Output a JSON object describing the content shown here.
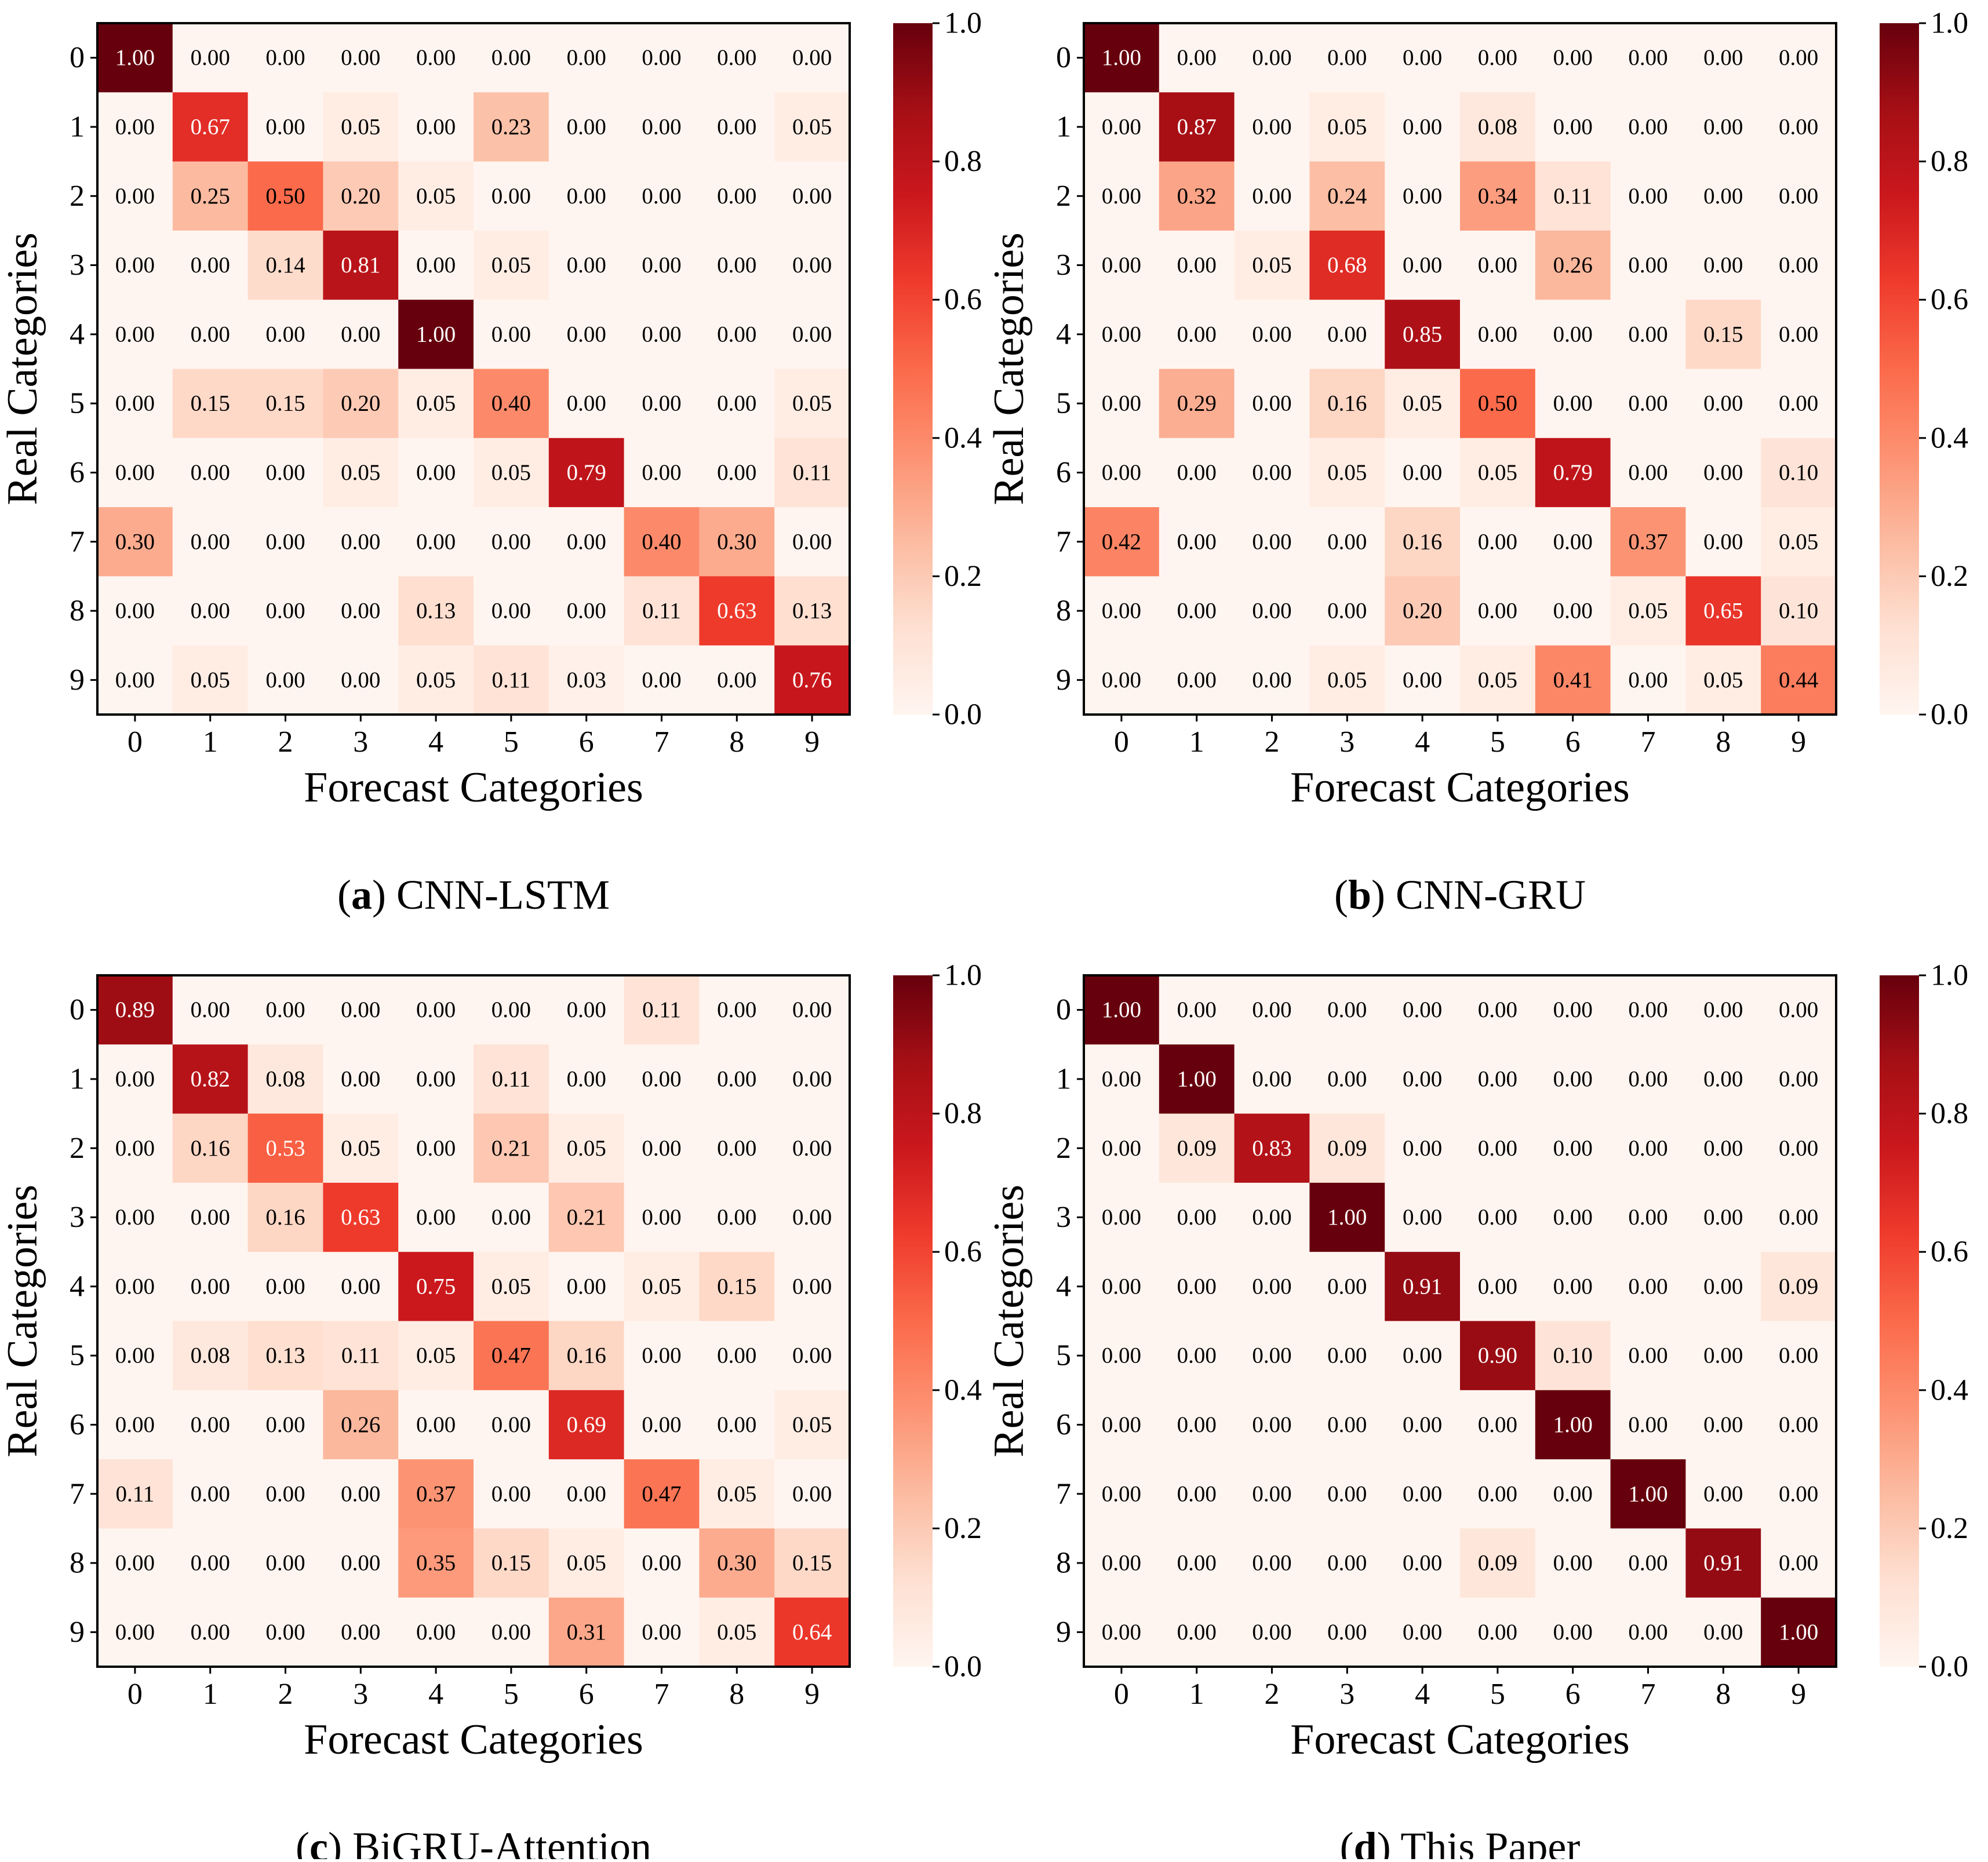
{
  "colormap": {
    "name": "Reds",
    "stops": [
      "#fff5f0",
      "#fee0d2",
      "#fcbba1",
      "#fc9272",
      "#fb6a4a",
      "#ef3b2c",
      "#cb181d",
      "#a50f15",
      "#67000d"
    ],
    "light_text_color": "#ffffff",
    "dark_text_color": "#000000"
  },
  "colorbar": {
    "ticks": [
      "0.0",
      "0.2",
      "0.4",
      "0.6",
      "0.8",
      "1.0"
    ]
  },
  "chart_data": [
    {
      "type": "heatmap",
      "caption_letter": "a",
      "caption_text": " CNN-LSTM",
      "xlabel": "Forecast Categories",
      "ylabel": "Real Categories",
      "x_ticks": [
        "0",
        "1",
        "2",
        "3",
        "4",
        "5",
        "6",
        "7",
        "8",
        "9"
      ],
      "y_ticks": [
        "0",
        "1",
        "2",
        "3",
        "4",
        "5",
        "6",
        "7",
        "8",
        "9"
      ],
      "vmin": 0.0,
      "vmax": 1.0,
      "matrix": [
        [
          1.0,
          0.0,
          0.0,
          0.0,
          0.0,
          0.0,
          0.0,
          0.0,
          0.0,
          0.0
        ],
        [
          0.0,
          0.67,
          0.0,
          0.05,
          0.0,
          0.23,
          0.0,
          0.0,
          0.0,
          0.05
        ],
        [
          0.0,
          0.25,
          0.5,
          0.2,
          0.05,
          0.0,
          0.0,
          0.0,
          0.0,
          0.0
        ],
        [
          0.0,
          0.0,
          0.14,
          0.81,
          0.0,
          0.05,
          0.0,
          0.0,
          0.0,
          0.0
        ],
        [
          0.0,
          0.0,
          0.0,
          0.0,
          1.0,
          0.0,
          0.0,
          0.0,
          0.0,
          0.0
        ],
        [
          0.0,
          0.15,
          0.15,
          0.2,
          0.05,
          0.4,
          0.0,
          0.0,
          0.0,
          0.05
        ],
        [
          0.0,
          0.0,
          0.0,
          0.05,
          0.0,
          0.05,
          0.79,
          0.0,
          0.0,
          0.11
        ],
        [
          0.3,
          0.0,
          0.0,
          0.0,
          0.0,
          0.0,
          0.0,
          0.4,
          0.3,
          0.0
        ],
        [
          0.0,
          0.0,
          0.0,
          0.0,
          0.13,
          0.0,
          0.0,
          0.11,
          0.63,
          0.13
        ],
        [
          0.0,
          0.05,
          0.0,
          0.0,
          0.05,
          0.11,
          0.03,
          0.0,
          0.0,
          0.76
        ]
      ]
    },
    {
      "type": "heatmap",
      "caption_letter": "b",
      "caption_text": " CNN-GRU",
      "xlabel": "Forecast Categories",
      "ylabel": "Real Categories",
      "x_ticks": [
        "0",
        "1",
        "2",
        "3",
        "4",
        "5",
        "6",
        "7",
        "8",
        "9"
      ],
      "y_ticks": [
        "0",
        "1",
        "2",
        "3",
        "4",
        "5",
        "6",
        "7",
        "8",
        "9"
      ],
      "vmin": 0.0,
      "vmax": 1.0,
      "matrix": [
        [
          1.0,
          0.0,
          0.0,
          0.0,
          0.0,
          0.0,
          0.0,
          0.0,
          0.0,
          0.0
        ],
        [
          0.0,
          0.87,
          0.0,
          0.05,
          0.0,
          0.08,
          0.0,
          0.0,
          0.0,
          0.0
        ],
        [
          0.0,
          0.32,
          0.0,
          0.24,
          0.0,
          0.34,
          0.11,
          0.0,
          0.0,
          0.0
        ],
        [
          0.0,
          0.0,
          0.05,
          0.68,
          0.0,
          0.0,
          0.26,
          0.0,
          0.0,
          0.0
        ],
        [
          0.0,
          0.0,
          0.0,
          0.0,
          0.85,
          0.0,
          0.0,
          0.0,
          0.15,
          0.0
        ],
        [
          0.0,
          0.29,
          0.0,
          0.16,
          0.05,
          0.5,
          0.0,
          0.0,
          0.0,
          0.0
        ],
        [
          0.0,
          0.0,
          0.0,
          0.05,
          0.0,
          0.05,
          0.79,
          0.0,
          0.0,
          0.1
        ],
        [
          0.42,
          0.0,
          0.0,
          0.0,
          0.16,
          0.0,
          0.0,
          0.37,
          0.0,
          0.05
        ],
        [
          0.0,
          0.0,
          0.0,
          0.0,
          0.2,
          0.0,
          0.0,
          0.05,
          0.65,
          0.1
        ],
        [
          0.0,
          0.0,
          0.0,
          0.05,
          0.0,
          0.05,
          0.41,
          0.0,
          0.05,
          0.44
        ]
      ]
    },
    {
      "type": "heatmap",
      "caption_letter": "c",
      "caption_text": " BiGRU-Attention",
      "xlabel": "Forecast Categories",
      "ylabel": "Real Categories",
      "x_ticks": [
        "0",
        "1",
        "2",
        "3",
        "4",
        "5",
        "6",
        "7",
        "8",
        "9"
      ],
      "y_ticks": [
        "0",
        "1",
        "2",
        "3",
        "4",
        "5",
        "6",
        "7",
        "8",
        "9"
      ],
      "vmin": 0.0,
      "vmax": 1.0,
      "matrix": [
        [
          0.89,
          0.0,
          0.0,
          0.0,
          0.0,
          0.0,
          0.0,
          0.11,
          0.0,
          0.0
        ],
        [
          0.0,
          0.82,
          0.08,
          0.0,
          0.0,
          0.11,
          0.0,
          0.0,
          0.0,
          0.0
        ],
        [
          0.0,
          0.16,
          0.53,
          0.05,
          0.0,
          0.21,
          0.05,
          0.0,
          0.0,
          0.0
        ],
        [
          0.0,
          0.0,
          0.16,
          0.63,
          0.0,
          0.0,
          0.21,
          0.0,
          0.0,
          0.0
        ],
        [
          0.0,
          0.0,
          0.0,
          0.0,
          0.75,
          0.05,
          0.0,
          0.05,
          0.15,
          0.0
        ],
        [
          0.0,
          0.08,
          0.13,
          0.11,
          0.05,
          0.47,
          0.16,
          0.0,
          0.0,
          0.0
        ],
        [
          0.0,
          0.0,
          0.0,
          0.26,
          0.0,
          0.0,
          0.69,
          0.0,
          0.0,
          0.05
        ],
        [
          0.11,
          0.0,
          0.0,
          0.0,
          0.37,
          0.0,
          0.0,
          0.47,
          0.05,
          0.0
        ],
        [
          0.0,
          0.0,
          0.0,
          0.0,
          0.35,
          0.15,
          0.05,
          0.0,
          0.3,
          0.15
        ],
        [
          0.0,
          0.0,
          0.0,
          0.0,
          0.0,
          0.0,
          0.31,
          0.0,
          0.05,
          0.64
        ]
      ]
    },
    {
      "type": "heatmap",
      "caption_letter": "d",
      "caption_text": " This Paper",
      "xlabel": "Forecast Categories",
      "ylabel": "Real Categories",
      "x_ticks": [
        "0",
        "1",
        "2",
        "3",
        "4",
        "5",
        "6",
        "7",
        "8",
        "9"
      ],
      "y_ticks": [
        "0",
        "1",
        "2",
        "3",
        "4",
        "5",
        "6",
        "7",
        "8",
        "9"
      ],
      "vmin": 0.0,
      "vmax": 1.0,
      "matrix": [
        [
          1.0,
          0.0,
          0.0,
          0.0,
          0.0,
          0.0,
          0.0,
          0.0,
          0.0,
          0.0
        ],
        [
          0.0,
          1.0,
          0.0,
          0.0,
          0.0,
          0.0,
          0.0,
          0.0,
          0.0,
          0.0
        ],
        [
          0.0,
          0.09,
          0.83,
          0.09,
          0.0,
          0.0,
          0.0,
          0.0,
          0.0,
          0.0
        ],
        [
          0.0,
          0.0,
          0.0,
          1.0,
          0.0,
          0.0,
          0.0,
          0.0,
          0.0,
          0.0
        ],
        [
          0.0,
          0.0,
          0.0,
          0.0,
          0.91,
          0.0,
          0.0,
          0.0,
          0.0,
          0.09
        ],
        [
          0.0,
          0.0,
          0.0,
          0.0,
          0.0,
          0.9,
          0.1,
          0.0,
          0.0,
          0.0
        ],
        [
          0.0,
          0.0,
          0.0,
          0.0,
          0.0,
          0.0,
          1.0,
          0.0,
          0.0,
          0.0
        ],
        [
          0.0,
          0.0,
          0.0,
          0.0,
          0.0,
          0.0,
          0.0,
          1.0,
          0.0,
          0.0
        ],
        [
          0.0,
          0.0,
          0.0,
          0.0,
          0.0,
          0.09,
          0.0,
          0.0,
          0.91,
          0.0
        ],
        [
          0.0,
          0.0,
          0.0,
          0.0,
          0.0,
          0.0,
          0.0,
          0.0,
          0.0,
          1.0
        ]
      ]
    }
  ]
}
